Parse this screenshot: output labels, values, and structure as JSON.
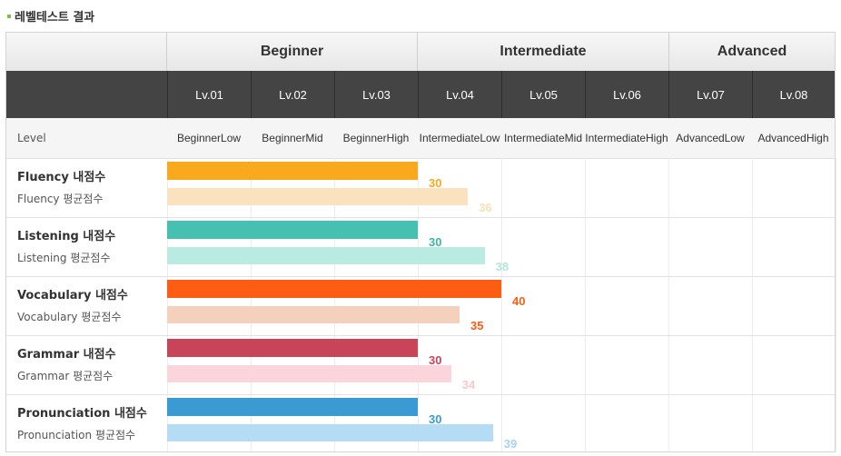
{
  "page_title": "레벨테스트 결과",
  "level_label": "Level",
  "groups": [
    "Beginner",
    "Intermediate",
    "Advanced"
  ],
  "levels": [
    {
      "code": "Lv.01",
      "name1": "Beginner",
      "name2": "Low"
    },
    {
      "code": "Lv.02",
      "name1": "Beginner",
      "name2": "Mid"
    },
    {
      "code": "Lv.03",
      "name1": "Beginner",
      "name2": "High"
    },
    {
      "code": "Lv.04",
      "name1": "Intermediate",
      "name2": "Low"
    },
    {
      "code": "Lv.05",
      "name1": "Intermediate",
      "name2": "Mid"
    },
    {
      "code": "Lv.06",
      "name1": "Intermediate",
      "name2": "High"
    },
    {
      "code": "Lv.07",
      "name1": "Advanced",
      "name2": "Low"
    },
    {
      "code": "Lv.08",
      "name1": "Advanced",
      "name2": "High"
    }
  ],
  "chart_data": {
    "type": "bar",
    "orientation": "horizontal",
    "categories": [
      "Fluency",
      "Listening",
      "Vocabulary",
      "Grammar",
      "Pronunciation"
    ],
    "series": [
      {
        "name": "내점수",
        "values": [
          30,
          30,
          40,
          30,
          30
        ]
      },
      {
        "name": "평균점수",
        "values": [
          36,
          38,
          35,
          34,
          39
        ]
      }
    ],
    "row_labels": [
      {
        "my": "Fluency 내점수",
        "avg": "Fluency 평균점수"
      },
      {
        "my": "Listening 내점수",
        "avg": "Listening 평균점수"
      },
      {
        "my": "Vocabulary 내점수",
        "avg": "Vocabulary 평균점수"
      },
      {
        "my": "Grammar 내점수",
        "avg": "Grammar 평균점수"
      },
      {
        "my": "Pronunciation 내점수",
        "avg": "Pronunciation 평균점수"
      }
    ],
    "colors": {
      "my": [
        "#f9a91e",
        "#45c0b1",
        "#fc5d13",
        "#c84559",
        "#3a9ad2"
      ],
      "avg": [
        "#f9e2bd",
        "#b9ebe3",
        "#f5d0bd",
        "#fad5dc",
        "#b5dcf5"
      ],
      "my_text": [
        "#f9a91e",
        "#3fb5a4",
        "#fc5d13",
        "#c84559",
        "#3a9ad2"
      ],
      "avg_text": [
        "#f9e0b5",
        "#b3e5dc",
        "#fc5d13",
        "#f7c8d2",
        "#a6d3f3"
      ]
    },
    "xlim": [
      0,
      80
    ]
  }
}
